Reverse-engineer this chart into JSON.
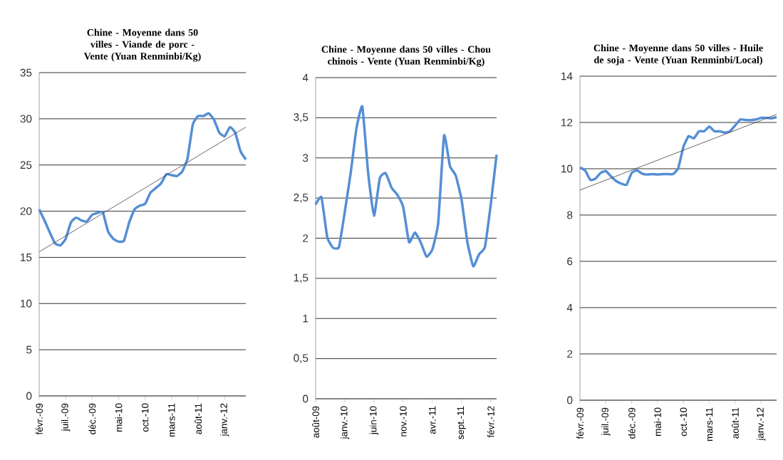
{
  "chart_data": [
    {
      "type": "line",
      "title": "Chine - Moyenne dans 50 villes - Viande de porc - Vente (Yuan Renminbi/Kg)",
      "x": [
        "2009-02",
        "2009-03",
        "2009-04",
        "2009-05",
        "2009-06",
        "2009-07",
        "2009-08",
        "2009-09",
        "2009-10",
        "2009-11",
        "2009-12",
        "2010-01",
        "2010-02",
        "2010-03",
        "2010-04",
        "2010-05",
        "2010-06",
        "2010-07",
        "2010-08",
        "2010-09",
        "2010-10",
        "2010-11",
        "2010-12",
        "2011-01",
        "2011-02",
        "2011-03",
        "2011-04",
        "2011-05",
        "2011-06",
        "2011-07",
        "2011-08",
        "2011-09",
        "2011-10",
        "2011-11",
        "2011-12",
        "2012-01",
        "2012-02",
        "2012-03",
        "2012-04",
        "2012-05"
      ],
      "series": [
        {
          "color": "#558ed5",
          "values": [
            20.2,
            19.0,
            17.7,
            16.5,
            16.3,
            17.0,
            18.8,
            19.3,
            19.0,
            18.9,
            19.6,
            19.8,
            19.9,
            17.8,
            17.0,
            16.7,
            16.8,
            18.8,
            20.2,
            20.6,
            20.8,
            22.0,
            22.5,
            23.0,
            24.0,
            23.9,
            23.8,
            24.3,
            25.7,
            29.4,
            30.3,
            30.3,
            30.6,
            29.9,
            28.5,
            28.1,
            29.1,
            28.5,
            26.5,
            25.6
          ]
        },
        {
          "type": "line",
          "color": "#404040",
          "x": [
            "2009-02",
            "2012-05"
          ],
          "values": [
            15.6,
            29.1
          ]
        }
      ],
      "xlim": [
        "2009-02",
        "2012-05"
      ],
      "xticks": [
        {
          "value": "2009-02",
          "label": "févr.-09"
        },
        {
          "value": "2009-07",
          "label": "juil.-09"
        },
        {
          "value": "2009-12",
          "label": "déc.-09"
        },
        {
          "value": "2010-05",
          "label": "mai-10"
        },
        {
          "value": "2010-10",
          "label": "oct.-10"
        },
        {
          "value": "2011-03",
          "label": "mars-11"
        },
        {
          "value": "2011-08",
          "label": "août-11"
        },
        {
          "value": "2012-01",
          "label": "janv.-12"
        }
      ],
      "ylim": [
        0,
        35
      ],
      "yticks": [
        0,
        5,
        10,
        15,
        20,
        25,
        30,
        35
      ],
      "grid": "y"
    },
    {
      "type": "line",
      "title": "Chine - Moyenne dans 50 villes - Chou chinois - Vente (Yuan Renminbi/Kg)",
      "x": [
        "2009-08",
        "2009-09",
        "2009-10",
        "2009-11",
        "2009-12",
        "2010-01",
        "2010-02",
        "2010-03",
        "2010-04",
        "2010-05",
        "2010-06",
        "2010-07",
        "2010-08",
        "2010-09",
        "2010-10",
        "2010-11",
        "2010-12",
        "2011-01",
        "2011-02",
        "2011-03",
        "2011-04",
        "2011-05",
        "2011-06",
        "2011-07",
        "2011-08",
        "2011-09",
        "2011-10",
        "2011-11",
        "2011-12",
        "2012-01",
        "2012-02",
        "2012-03"
      ],
      "series": [
        {
          "color": "#558ed5",
          "values": [
            2.42,
            2.51,
            2.01,
            1.88,
            1.89,
            2.33,
            2.81,
            3.37,
            3.64,
            2.81,
            2.28,
            2.75,
            2.81,
            2.63,
            2.54,
            2.39,
            1.95,
            2.07,
            1.95,
            1.77,
            1.86,
            2.19,
            3.28,
            2.9,
            2.78,
            2.48,
            1.95,
            1.65,
            1.8,
            1.89,
            2.42,
            3.04
          ]
        }
      ],
      "xlim": [
        "2009-08",
        "2012-03"
      ],
      "xticks": [
        {
          "value": "2009-08",
          "label": "août-09"
        },
        {
          "value": "2010-01",
          "label": "janv.-10"
        },
        {
          "value": "2010-06",
          "label": "juin-10"
        },
        {
          "value": "2010-11",
          "label": "nov.-10"
        },
        {
          "value": "2011-04",
          "label": "avr.-11"
        },
        {
          "value": "2011-09",
          "label": "sept.-11"
        },
        {
          "value": "2012-02",
          "label": "févr.-12"
        }
      ],
      "ylim": [
        0,
        4
      ],
      "yticks": [
        0,
        {
          "value": 0.5,
          "label": "0,5"
        },
        1,
        {
          "value": 1.5,
          "label": "1,5"
        },
        2,
        {
          "value": 2.5,
          "label": "2,5"
        },
        3,
        {
          "value": 3.5,
          "label": "3,5"
        },
        4
      ],
      "grid": "y"
    },
    {
      "type": "line",
      "title": "Chine - Moyenne dans 50 villes - Huile de soja - Vente (Yuan Renminbi/Local)",
      "x": [
        "2009-02",
        "2009-03",
        "2009-04",
        "2009-05",
        "2009-06",
        "2009-07",
        "2009-08",
        "2009-09",
        "2009-10",
        "2009-11",
        "2009-12",
        "2010-01",
        "2010-02",
        "2010-03",
        "2010-04",
        "2010-05",
        "2010-06",
        "2010-07",
        "2010-08",
        "2010-09",
        "2010-10",
        "2010-11",
        "2010-12",
        "2011-01",
        "2011-02",
        "2011-03",
        "2011-04",
        "2011-05",
        "2011-06",
        "2011-07",
        "2011-08",
        "2011-09",
        "2011-10",
        "2011-11",
        "2011-12",
        "2012-01",
        "2012-02",
        "2012-03",
        "2012-04"
      ],
      "series": [
        {
          "color": "#558ed5",
          "values": [
            10.05,
            9.93,
            9.52,
            9.57,
            9.82,
            9.9,
            9.67,
            9.47,
            9.36,
            9.31,
            9.82,
            9.93,
            9.79,
            9.75,
            9.77,
            9.75,
            9.77,
            9.77,
            9.77,
            10.03,
            10.95,
            11.41,
            11.31,
            11.62,
            11.62,
            11.82,
            11.62,
            11.62,
            11.56,
            11.62,
            11.87,
            12.13,
            12.11,
            12.1,
            12.13,
            12.2,
            12.2,
            12.18,
            12.23
          ]
        },
        {
          "type": "line",
          "color": "#404040",
          "x": [
            "2009-02",
            "2012-04"
          ],
          "values": [
            9.08,
            12.35
          ]
        }
      ],
      "xlim": [
        "2009-02",
        "2012-04"
      ],
      "xticks": [
        {
          "value": "2009-02",
          "label": "févr.-09"
        },
        {
          "value": "2009-07",
          "label": "juil.-09"
        },
        {
          "value": "2009-12",
          "label": "déc.-09"
        },
        {
          "value": "2010-05",
          "label": "mai-10"
        },
        {
          "value": "2010-10",
          "label": "oct.-10"
        },
        {
          "value": "2011-03",
          "label": "mars-11"
        },
        {
          "value": "2011-08",
          "label": "août-11"
        },
        {
          "value": "2012-01",
          "label": "janv.-12"
        }
      ],
      "ylim": [
        0,
        14
      ],
      "yticks": [
        0,
        2,
        4,
        6,
        8,
        10,
        12,
        14
      ],
      "grid": "y"
    }
  ]
}
